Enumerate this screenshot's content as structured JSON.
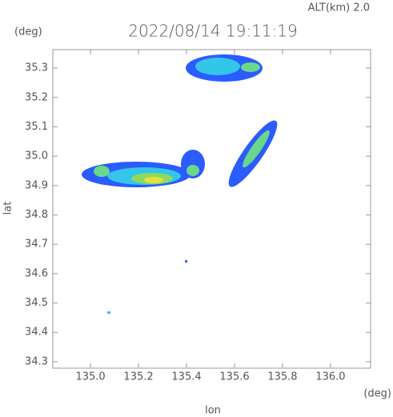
{
  "chart_data": {
    "type": "map",
    "title": "2022/08/14 19:11:19",
    "altitude_label": "ALT(km) 2.0",
    "y_unit": "(deg)",
    "x_unit": "(deg)",
    "xlabel": "lon",
    "ylabel": "lat",
    "xlim": [
      134.843,
      136.167
    ],
    "ylim": [
      34.278,
      35.363
    ],
    "xticks": [
      {
        "value": 135.0,
        "label": "135.0"
      },
      135.2,
      135.4,
      135.6,
      135.8,
      {
        "value": 136.0,
        "label": "136.0"
      }
    ],
    "yticks": [
      34.3,
      34.4,
      34.5,
      34.6,
      34.7,
      34.8,
      34.9,
      {
        "value": 35.0,
        "label": "35.0"
      },
      35.1,
      35.2,
      35.3
    ]
  }
}
